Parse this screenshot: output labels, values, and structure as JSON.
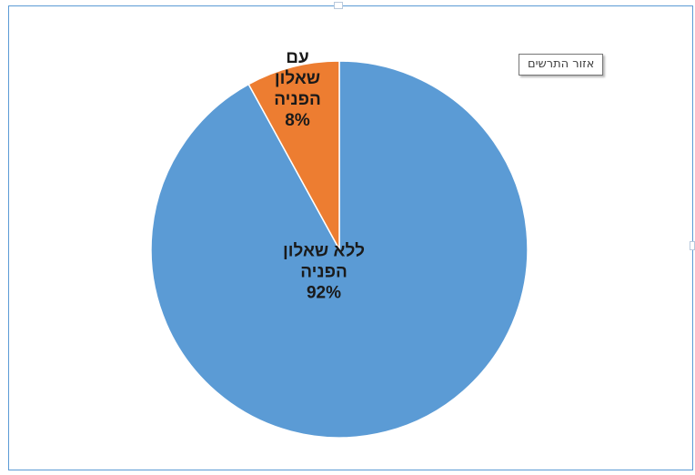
{
  "chart_data": {
    "type": "pie",
    "slices": [
      {
        "label_lines": [
          "ללא שאלון",
          "הפניה"
        ],
        "value": 92,
        "value_label": "92%",
        "color": "#5b9bd5"
      },
      {
        "label_lines": [
          "עם",
          "שאלון",
          "הפניה"
        ],
        "value": 8,
        "value_label": "8%",
        "color": "#ed7d31"
      }
    ],
    "start_angle_deg": 0,
    "direction": "clockwise",
    "legend": "none"
  },
  "tooltip": {
    "text": "אזור התרשים"
  }
}
